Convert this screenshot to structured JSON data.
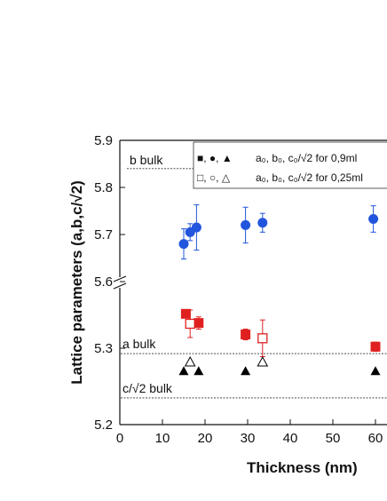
{
  "chart_data": {
    "type": "scatter",
    "xlabel": "Thickness (nm)",
    "ylabel": "Lattice parameters (a,b,c/√2)",
    "xlim": [
      0,
      63
    ],
    "x_ticks": [
      "0",
      "10",
      "20",
      "30",
      "40",
      "50",
      "60"
    ],
    "y_ticks_lower": [
      "5.2",
      "5.3"
    ],
    "y_ticks_upper": [
      "5.6",
      "5.7",
      "5.8",
      "5.9"
    ],
    "axis_break": "between 5.3 and 5.6 (broken y-axis)",
    "lower_panel_ylim": [
      5.2,
      5.37
    ],
    "upper_panel_ylim": [
      5.6,
      5.9
    ],
    "grid": false,
    "legend_position": "top-right",
    "legend": [
      {
        "symbols": "■, ●, ▲",
        "text": "a₀, b₀, c₀/√2 for 0,9ml"
      },
      {
        "symbols": "□, ○, △",
        "text": "a₀, b₀, c₀/√2 for 0,25ml"
      }
    ],
    "reference_lines": [
      {
        "label": "b bulk",
        "y": 5.84
      },
      {
        "label": "a bulk",
        "y": 5.293
      },
      {
        "label": "c/√2 bulk",
        "y": 5.235
      }
    ],
    "series": [
      {
        "name": "b₀ 0,9ml",
        "marker": "circle-filled",
        "color": "#2255dd",
        "x": [
          15,
          16.5,
          18,
          29.5,
          33.5,
          59.5
        ],
        "y": [
          5.68,
          5.705,
          5.715,
          5.72,
          5.725,
          5.733
        ],
        "err": [
          0.032,
          0.018,
          0.048,
          0.038,
          0.02,
          0.028
        ]
      },
      {
        "name": "a₀ 0,9ml",
        "marker": "square-filled",
        "color": "#e02020",
        "x": [
          15.5,
          18.5,
          29.5,
          60
        ],
        "y": [
          5.345,
          5.333,
          5.318,
          5.302
        ],
        "err": [
          0.005,
          0.008,
          0.007,
          0.006
        ]
      },
      {
        "name": "a₀ 0,25ml",
        "marker": "square-open",
        "color": "#e02020",
        "x": [
          16.5,
          33.5
        ],
        "y": [
          5.332,
          5.313
        ],
        "err": [
          0.018,
          0.024
        ]
      },
      {
        "name": "c₀/√2 0,9ml",
        "marker": "triangle-filled",
        "color": "#000000",
        "x": [
          15,
          18.5,
          29.5,
          60
        ],
        "y": [
          5.27,
          5.27,
          5.27,
          5.27
        ],
        "err": [
          0,
          0,
          0,
          0
        ]
      },
      {
        "name": "c₀/√2 0,25ml",
        "marker": "triangle-open",
        "color": "#000000",
        "x": [
          16.5,
          33.5
        ],
        "y": [
          5.282,
          5.282
        ],
        "err": [
          0,
          0
        ]
      }
    ]
  }
}
